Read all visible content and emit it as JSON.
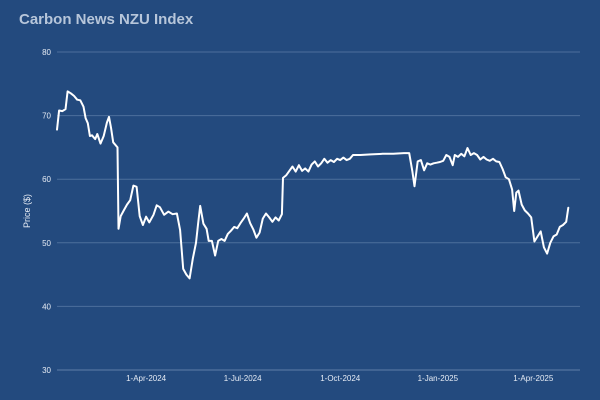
{
  "chart_data": {
    "type": "line",
    "title": "Carbon News NZU Index",
    "xlabel": "",
    "ylabel": "Price ($)",
    "ylim": [
      30,
      80
    ],
    "yticks": [
      30,
      40,
      50,
      60,
      70,
      80
    ],
    "xlim": [
      "2024-01-08",
      "2025-05-15"
    ],
    "xticks": [
      {
        "date": "2024-04-01",
        "label": "1-Apr-2024"
      },
      {
        "date": "2024-07-01",
        "label": "1-Jul-2024"
      },
      {
        "date": "2024-10-01",
        "label": "1-Oct-2024"
      },
      {
        "date": "2025-01-01",
        "label": "1-Jan-2025"
      },
      {
        "date": "2025-04-01",
        "label": "1-Apr-2025"
      }
    ],
    "grid": "horizontal",
    "line_color": "#ffffff",
    "background_color": "#234a7e",
    "series": [
      {
        "name": "",
        "points": [
          [
            "2024-01-08",
            67.8
          ],
          [
            "2024-01-10",
            70.8
          ],
          [
            "2024-01-13",
            70.7
          ],
          [
            "2024-01-16",
            71.0
          ],
          [
            "2024-01-18",
            73.8
          ],
          [
            "2024-01-21",
            73.5
          ],
          [
            "2024-01-24",
            73.1
          ],
          [
            "2024-01-27",
            72.5
          ],
          [
            "2024-01-30",
            72.4
          ],
          [
            "2024-02-02",
            71.4
          ],
          [
            "2024-02-04",
            69.6
          ],
          [
            "2024-02-06",
            68.8
          ],
          [
            "2024-02-08",
            66.8
          ],
          [
            "2024-02-10",
            66.9
          ],
          [
            "2024-02-13",
            66.3
          ],
          [
            "2024-02-15",
            67.1
          ],
          [
            "2024-02-18",
            65.6
          ],
          [
            "2024-02-21",
            66.8
          ],
          [
            "2024-02-24",
            68.9
          ],
          [
            "2024-02-26",
            69.8
          ],
          [
            "2024-02-28",
            68.0
          ],
          [
            "2024-03-01",
            65.8
          ],
          [
            "2024-03-05",
            65.0
          ],
          [
            "2024-03-06",
            52.2
          ],
          [
            "2024-03-08",
            54.2
          ],
          [
            "2024-03-11",
            55.1
          ],
          [
            "2024-03-14",
            56.0
          ],
          [
            "2024-03-17",
            56.7
          ],
          [
            "2024-03-20",
            59.0
          ],
          [
            "2024-03-23",
            58.8
          ],
          [
            "2024-03-26",
            54.2
          ],
          [
            "2024-03-29",
            52.8
          ],
          [
            "2024-04-01",
            54.1
          ],
          [
            "2024-04-04",
            53.2
          ],
          [
            "2024-04-08",
            54.4
          ],
          [
            "2024-04-11",
            55.9
          ],
          [
            "2024-04-14",
            55.6
          ],
          [
            "2024-04-18",
            54.4
          ],
          [
            "2024-04-22",
            54.9
          ],
          [
            "2024-04-26",
            54.5
          ],
          [
            "2024-04-30",
            54.6
          ],
          [
            "2024-05-03",
            52.0
          ],
          [
            "2024-05-06",
            45.9
          ],
          [
            "2024-05-09",
            45.0
          ],
          [
            "2024-05-12",
            44.4
          ],
          [
            "2024-05-15",
            47.5
          ],
          [
            "2024-05-18",
            50.0
          ],
          [
            "2024-05-20",
            53.0
          ],
          [
            "2024-05-22",
            55.8
          ],
          [
            "2024-05-25",
            53.0
          ],
          [
            "2024-05-28",
            52.2
          ],
          [
            "2024-05-30",
            50.3
          ],
          [
            "2024-06-02",
            50.3
          ],
          [
            "2024-06-05",
            48.0
          ],
          [
            "2024-06-08",
            50.3
          ],
          [
            "2024-06-11",
            50.6
          ],
          [
            "2024-06-14",
            50.3
          ],
          [
            "2024-06-17",
            51.4
          ],
          [
            "2024-06-20",
            51.9
          ],
          [
            "2024-06-23",
            52.5
          ],
          [
            "2024-06-26",
            52.3
          ],
          [
            "2024-06-29",
            53.1
          ],
          [
            "2024-07-02",
            53.8
          ],
          [
            "2024-07-05",
            54.6
          ],
          [
            "2024-07-08",
            53.1
          ],
          [
            "2024-07-11",
            52.1
          ],
          [
            "2024-07-14",
            50.8
          ],
          [
            "2024-07-17",
            51.6
          ],
          [
            "2024-07-20",
            53.8
          ],
          [
            "2024-07-23",
            54.6
          ],
          [
            "2024-07-26",
            54.0
          ],
          [
            "2024-07-29",
            53.3
          ],
          [
            "2024-08-01",
            54.0
          ],
          [
            "2024-08-04",
            53.5
          ],
          [
            "2024-08-07",
            54.5
          ],
          [
            "2024-08-08",
            60.2
          ],
          [
            "2024-08-11",
            60.6
          ],
          [
            "2024-08-14",
            61.3
          ],
          [
            "2024-08-17",
            62.0
          ],
          [
            "2024-08-20",
            61.2
          ],
          [
            "2024-08-23",
            62.2
          ],
          [
            "2024-08-26",
            61.3
          ],
          [
            "2024-08-29",
            61.7
          ],
          [
            "2024-09-01",
            61.2
          ],
          [
            "2024-09-04",
            62.3
          ],
          [
            "2024-09-07",
            62.8
          ],
          [
            "2024-09-10",
            62.0
          ],
          [
            "2024-09-13",
            62.5
          ],
          [
            "2024-09-16",
            63.2
          ],
          [
            "2024-09-19",
            62.6
          ],
          [
            "2024-09-22",
            63.0
          ],
          [
            "2024-09-25",
            62.7
          ],
          [
            "2024-09-28",
            63.2
          ],
          [
            "2024-10-01",
            63.0
          ],
          [
            "2024-10-04",
            63.4
          ],
          [
            "2024-10-07",
            63.0
          ],
          [
            "2024-10-10",
            63.2
          ],
          [
            "2024-10-13",
            63.8
          ],
          [
            "2024-10-20",
            63.8
          ],
          [
            "2024-10-30",
            63.9
          ],
          [
            "2024-11-10",
            64.0
          ],
          [
            "2024-11-20",
            64.0
          ],
          [
            "2024-11-30",
            64.1
          ],
          [
            "2024-12-05",
            64.1
          ],
          [
            "2024-12-08",
            61.2
          ],
          [
            "2024-12-10",
            58.9
          ],
          [
            "2024-12-13",
            62.8
          ],
          [
            "2024-12-16",
            63.0
          ],
          [
            "2024-12-19",
            61.4
          ],
          [
            "2024-12-22",
            62.5
          ],
          [
            "2024-12-25",
            62.3
          ],
          [
            "2024-12-28",
            62.5
          ],
          [
            "2024-12-31",
            62.6
          ],
          [
            "2025-01-03",
            62.7
          ],
          [
            "2025-01-06",
            62.9
          ],
          [
            "2025-01-09",
            63.8
          ],
          [
            "2025-01-12",
            63.5
          ],
          [
            "2025-01-15",
            62.2
          ],
          [
            "2025-01-17",
            63.8
          ],
          [
            "2025-01-20",
            63.5
          ],
          [
            "2025-01-23",
            64.0
          ],
          [
            "2025-01-26",
            63.6
          ],
          [
            "2025-01-29",
            64.9
          ],
          [
            "2025-02-01",
            63.8
          ],
          [
            "2025-02-04",
            64.1
          ],
          [
            "2025-02-07",
            63.8
          ],
          [
            "2025-02-10",
            63.1
          ],
          [
            "2025-02-13",
            63.5
          ],
          [
            "2025-02-16",
            63.1
          ],
          [
            "2025-02-19",
            62.9
          ],
          [
            "2025-02-22",
            63.2
          ],
          [
            "2025-02-25",
            62.8
          ],
          [
            "2025-02-28",
            62.7
          ],
          [
            "2025-03-03",
            61.6
          ],
          [
            "2025-03-06",
            60.3
          ],
          [
            "2025-03-09",
            60.0
          ],
          [
            "2025-03-12",
            58.4
          ],
          [
            "2025-03-14",
            55.0
          ],
          [
            "2025-03-16",
            57.9
          ],
          [
            "2025-03-18",
            58.2
          ],
          [
            "2025-03-21",
            56.0
          ],
          [
            "2025-03-24",
            55.1
          ],
          [
            "2025-03-27",
            54.6
          ],
          [
            "2025-03-30",
            54.0
          ],
          [
            "2025-04-02",
            50.2
          ],
          [
            "2025-04-05",
            51.0
          ],
          [
            "2025-04-08",
            51.8
          ],
          [
            "2025-04-11",
            49.3
          ],
          [
            "2025-04-14",
            48.3
          ],
          [
            "2025-04-17",
            50.0
          ],
          [
            "2025-04-20",
            51.0
          ],
          [
            "2025-04-23",
            51.3
          ],
          [
            "2025-04-26",
            52.5
          ],
          [
            "2025-04-29",
            52.8
          ],
          [
            "2025-05-02",
            53.3
          ],
          [
            "2025-05-04",
            55.5
          ]
        ]
      }
    ]
  }
}
